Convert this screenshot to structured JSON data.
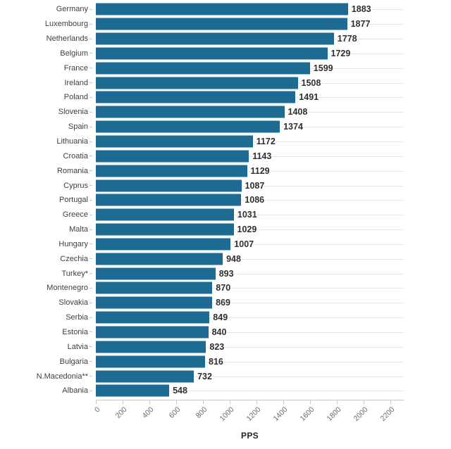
{
  "chart_data": {
    "type": "bar",
    "orientation": "horizontal",
    "title": "",
    "xlabel": "PPS",
    "ylabel": "",
    "xlim": [
      0,
      2200
    ],
    "x_ticks": [
      0,
      200,
      400,
      600,
      800,
      1000,
      1200,
      1400,
      1600,
      1800,
      2000,
      2200
    ],
    "grid": "light horizontal guide line per category row",
    "legend": "none",
    "categories": [
      "Germany",
      "Luxembourg",
      "Netherlands",
      "Belgium",
      "France",
      "Ireland",
      "Poland",
      "Slovenia",
      "Spain",
      "Lithuania",
      "Croatia",
      "Romania",
      "Cyprus",
      "Portugal",
      "Greece",
      "Malta",
      "Hungary",
      "Czechia",
      "Turkey*",
      "Montenegro",
      "Slovakia",
      "Serbia",
      "Estonia",
      "Latvia",
      "Bulgaria",
      "N.Macedonia**",
      "Albania"
    ],
    "values": [
      1883,
      1877,
      1778,
      1729,
      1599,
      1508,
      1491,
      1408,
      1374,
      1172,
      1143,
      1129,
      1087,
      1086,
      1031,
      1029,
      1007,
      948,
      893,
      870,
      869,
      849,
      840,
      823,
      816,
      732,
      548
    ]
  },
  "colors": {
    "bar": "#1d6b92",
    "category_label": "#404040",
    "value_label": "#2f2f2f",
    "axis_line": "#c6c6c6",
    "gridline": "#e4e4e4",
    "tick_label": "#6b6b6b",
    "background": "#ffffff"
  }
}
